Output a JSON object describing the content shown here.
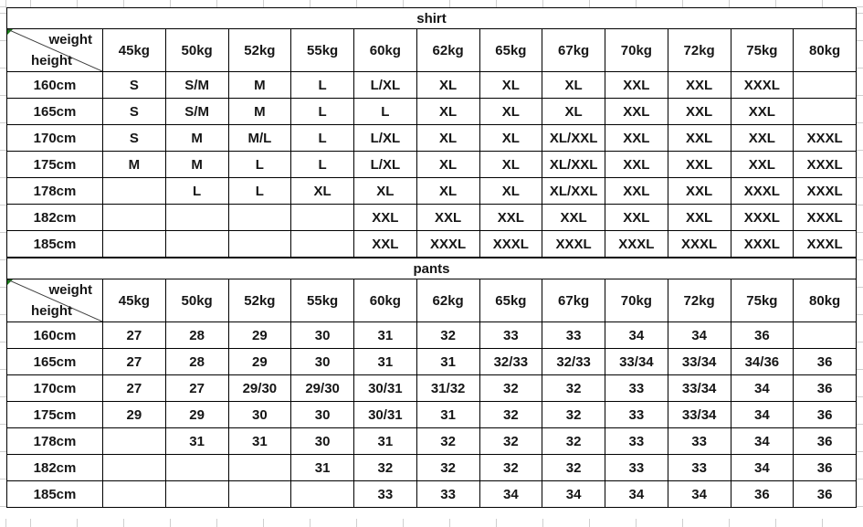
{
  "colors": {
    "border": "#000000",
    "grid": "#cfcfcf",
    "text": "#161616",
    "marker": "#1b801b"
  },
  "tables": [
    {
      "title": "shirt",
      "corner": {
        "weight_label": "weight",
        "height_label": "height"
      },
      "weight_columns": [
        "45kg",
        "50kg",
        "52kg",
        "55kg",
        "60kg",
        "62kg",
        "65kg",
        "67kg",
        "70kg",
        "72kg",
        "75kg",
        "80kg"
      ],
      "rows": [
        {
          "height": "160cm",
          "sizes": [
            "S",
            "S/M",
            "M",
            "L",
            "L/XL",
            "XL",
            "XL",
            "XL",
            "XXL",
            "XXL",
            "XXXL",
            ""
          ]
        },
        {
          "height": "165cm",
          "sizes": [
            "S",
            "S/M",
            "M",
            "L",
            "L",
            "XL",
            "XL",
            "XL",
            "XXL",
            "XXL",
            "XXL",
            ""
          ]
        },
        {
          "height": "170cm",
          "sizes": [
            "S",
            "M",
            "M/L",
            "L",
            "L/XL",
            "XL",
            "XL",
            "XL/XXL",
            "XXL",
            "XXL",
            "XXL",
            "XXXL"
          ]
        },
        {
          "height": "175cm",
          "sizes": [
            "M",
            "M",
            "L",
            "L",
            "L/XL",
            "XL",
            "XL",
            "XL/XXL",
            "XXL",
            "XXL",
            "XXL",
            "XXXL"
          ]
        },
        {
          "height": "178cm",
          "sizes": [
            "",
            "L",
            "L",
            "XL",
            "XL",
            "XL",
            "XL",
            "XL/XXL",
            "XXL",
            "XXL",
            "XXXL",
            "XXXL"
          ]
        },
        {
          "height": "182cm",
          "sizes": [
            "",
            "",
            "",
            "",
            "XXL",
            "XXL",
            "XXL",
            "XXL",
            "XXL",
            "XXL",
            "XXXL",
            "XXXL"
          ]
        },
        {
          "height": "185cm",
          "sizes": [
            "",
            "",
            "",
            "",
            "XXL",
            "XXXL",
            "XXXL",
            "XXXL",
            "XXXL",
            "XXXL",
            "XXXL",
            "XXXL"
          ]
        }
      ]
    },
    {
      "title": "pants",
      "corner": {
        "weight_label": "weight",
        "height_label": "height"
      },
      "weight_columns": [
        "45kg",
        "50kg",
        "52kg",
        "55kg",
        "60kg",
        "62kg",
        "65kg",
        "67kg",
        "70kg",
        "72kg",
        "75kg",
        "80kg"
      ],
      "rows": [
        {
          "height": "160cm",
          "sizes": [
            "27",
            "28",
            "29",
            "30",
            "31",
            "32",
            "33",
            "33",
            "34",
            "34",
            "36",
            ""
          ]
        },
        {
          "height": "165cm",
          "sizes": [
            "27",
            "28",
            "29",
            "30",
            "31",
            "31",
            "32/33",
            "32/33",
            "33/34",
            "33/34",
            "34/36",
            "36"
          ]
        },
        {
          "height": "170cm",
          "sizes": [
            "27",
            "27",
            "29/30",
            "29/30",
            "30/31",
            "31/32",
            "32",
            "32",
            "33",
            "33/34",
            "34",
            "36"
          ]
        },
        {
          "height": "175cm",
          "sizes": [
            "29",
            "29",
            "30",
            "30",
            "30/31",
            "31",
            "32",
            "32",
            "33",
            "33/34",
            "34",
            "36"
          ]
        },
        {
          "height": "178cm",
          "sizes": [
            "",
            "31",
            "31",
            "30",
            "31",
            "32",
            "32",
            "32",
            "33",
            "33",
            "34",
            "36"
          ]
        },
        {
          "height": "182cm",
          "sizes": [
            "",
            "",
            "",
            "31",
            "32",
            "32",
            "32",
            "32",
            "33",
            "33",
            "34",
            "36"
          ]
        },
        {
          "height": "185cm",
          "sizes": [
            "",
            "",
            "",
            "",
            "33",
            "33",
            "34",
            "34",
            "34",
            "34",
            "36",
            "36"
          ]
        }
      ]
    }
  ]
}
